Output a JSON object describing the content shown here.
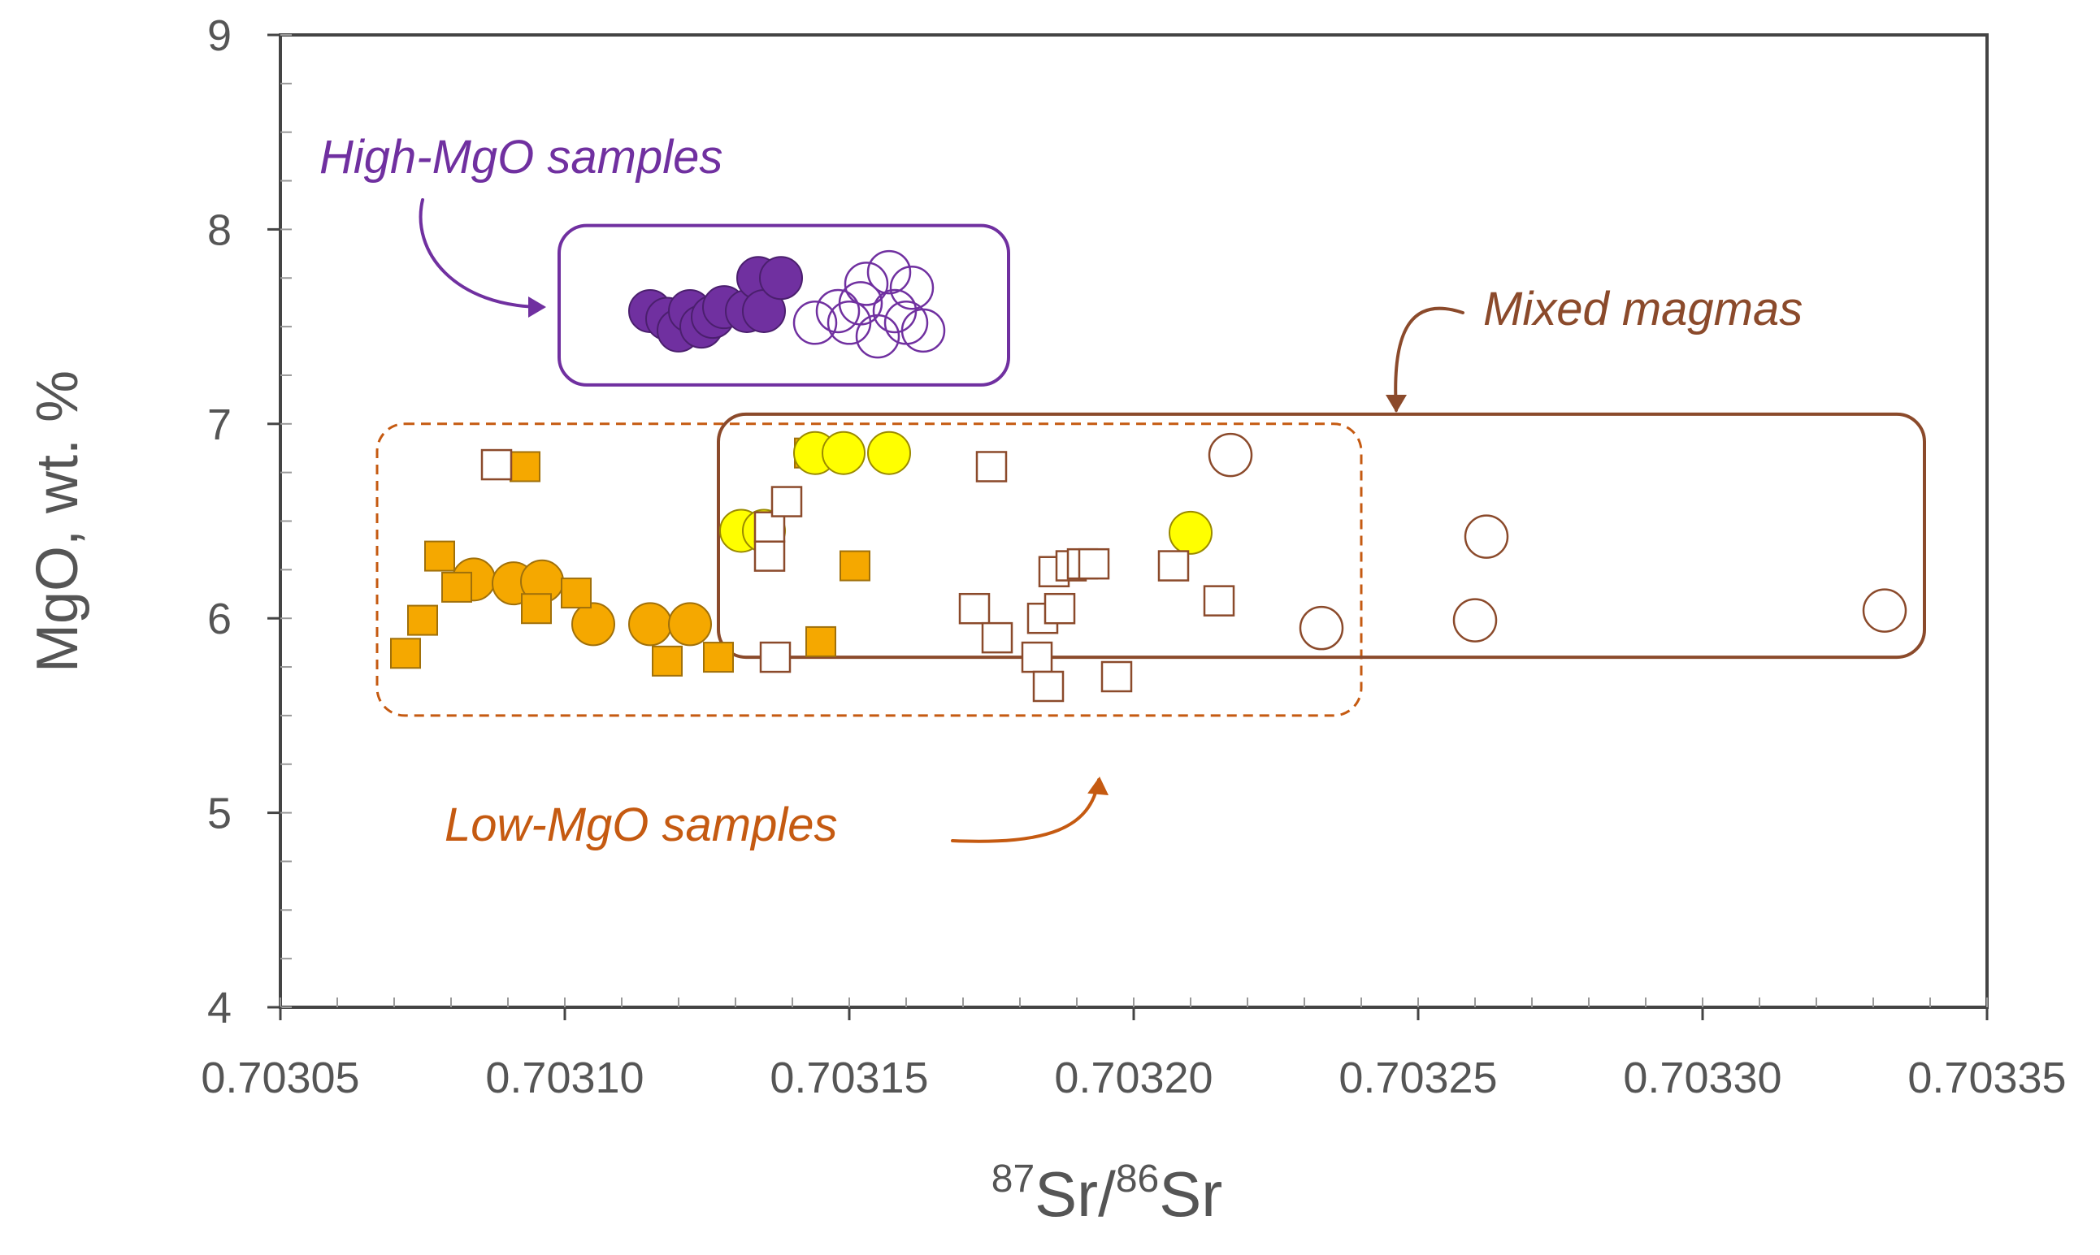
{
  "chart_data": {
    "type": "scatter",
    "title": "",
    "xlabel": {
      "base1": "Sr",
      "sup1": "87",
      "base2": "Sr",
      "sup2": "86",
      "sep": "/"
    },
    "ylabel": "MgO, wt. %",
    "xlim": [
      0.70305,
      0.70335
    ],
    "ylim": [
      4,
      9
    ],
    "x_ticks": [
      "0.70305",
      "0.70310",
      "0.70315",
      "0.70320",
      "0.70325",
      "0.70330",
      "0.70335"
    ],
    "x_tick_values": [
      0.70305,
      0.7031,
      0.70315,
      0.7032,
      0.70325,
      0.7033,
      0.70335
    ],
    "y_ticks": [
      "4",
      "5",
      "6",
      "7",
      "8",
      "9"
    ],
    "y_tick_values": [
      4,
      5,
      6,
      7,
      8,
      9
    ],
    "grid": false,
    "series": [
      {
        "name": "high-mgo-filled-circles",
        "marker": "circle",
        "filled": true,
        "fill": "#7030A0",
        "stroke": "#4B1F6E",
        "points": [
          [
            0.703115,
            7.58
          ],
          [
            0.703118,
            7.54
          ],
          [
            0.70312,
            7.48
          ],
          [
            0.703122,
            7.58
          ],
          [
            0.703124,
            7.5
          ],
          [
            0.703126,
            7.55
          ],
          [
            0.703128,
            7.6
          ],
          [
            0.703132,
            7.58
          ],
          [
            0.703134,
            7.75
          ],
          [
            0.703135,
            7.58
          ],
          [
            0.703138,
            7.75
          ]
        ]
      },
      {
        "name": "high-mgo-open-circles",
        "marker": "circle",
        "filled": false,
        "fill": "none",
        "stroke": "#7030A0",
        "points": [
          [
            0.703144,
            7.52
          ],
          [
            0.703148,
            7.58
          ],
          [
            0.70315,
            7.52
          ],
          [
            0.703152,
            7.62
          ],
          [
            0.703153,
            7.72
          ],
          [
            0.703155,
            7.45
          ],
          [
            0.703157,
            7.78
          ],
          [
            0.703158,
            7.58
          ],
          [
            0.70316,
            7.52
          ],
          [
            0.703161,
            7.7
          ],
          [
            0.703163,
            7.48
          ]
        ]
      },
      {
        "name": "low-mgo-filled-circles",
        "marker": "circle",
        "filled": true,
        "fill": "#F5A800",
        "stroke": "#A0700A",
        "points": [
          [
            0.703084,
            6.2
          ],
          [
            0.703091,
            6.18
          ],
          [
            0.703096,
            6.19
          ],
          [
            0.703105,
            5.97
          ],
          [
            0.703115,
            5.97
          ],
          [
            0.703122,
            5.97
          ]
        ]
      },
      {
        "name": "low-mgo-filled-squares",
        "marker": "square",
        "filled": true,
        "fill": "#F5A800",
        "stroke": "#A0700A",
        "points": [
          [
            0.703072,
            5.82
          ],
          [
            0.703075,
            5.99
          ],
          [
            0.703078,
            6.32
          ],
          [
            0.703081,
            6.16
          ],
          [
            0.703093,
            6.78
          ],
          [
            0.703095,
            6.05
          ],
          [
            0.703102,
            6.13
          ],
          [
            0.703118,
            5.78
          ],
          [
            0.703127,
            5.8
          ],
          [
            0.703145,
            5.88
          ],
          [
            0.703151,
            6.27
          ],
          [
            0.703143,
            6.85
          ]
        ]
      },
      {
        "name": "yellow-filled-circles",
        "marker": "circle",
        "filled": true,
        "fill": "#FFFF00",
        "stroke": "#9A8A00",
        "points": [
          [
            0.703131,
            6.45
          ],
          [
            0.703135,
            6.45
          ],
          [
            0.703144,
            6.85
          ],
          [
            0.703149,
            6.85
          ],
          [
            0.703157,
            6.85
          ],
          [
            0.70321,
            6.44
          ]
        ]
      },
      {
        "name": "open-squares",
        "marker": "square",
        "filled": false,
        "fill": "#ffffff",
        "stroke": "#8B4A2B",
        "points": [
          [
            0.703088,
            6.79
          ],
          [
            0.703136,
            6.32
          ],
          [
            0.703136,
            6.47
          ],
          [
            0.703137,
            5.8
          ],
          [
            0.703139,
            6.6
          ],
          [
            0.703172,
            6.05
          ],
          [
            0.703175,
            6.78
          ],
          [
            0.703176,
            5.9
          ],
          [
            0.703183,
            5.8
          ],
          [
            0.703184,
            6.0
          ],
          [
            0.703185,
            5.65
          ],
          [
            0.703186,
            6.24
          ],
          [
            0.703187,
            6.05
          ],
          [
            0.703189,
            6.27
          ],
          [
            0.703191,
            6.28
          ],
          [
            0.703193,
            6.28
          ],
          [
            0.703197,
            5.7
          ],
          [
            0.703207,
            6.27
          ],
          [
            0.703215,
            6.09
          ]
        ]
      },
      {
        "name": "open-circles",
        "marker": "circle",
        "filled": false,
        "fill": "#ffffff",
        "stroke": "#8B4A2B",
        "points": [
          [
            0.703217,
            6.84
          ],
          [
            0.703233,
            5.95
          ],
          [
            0.70326,
            5.99
          ],
          [
            0.703262,
            6.42
          ],
          [
            0.703332,
            6.04
          ]
        ]
      }
    ],
    "annotations": [
      {
        "id": "high-mgo",
        "text": "High-MgO samples",
        "color": "#7030A0"
      },
      {
        "id": "mixed",
        "text": "Mixed magmas",
        "color": "#8B4A2B"
      },
      {
        "id": "low-mgo",
        "text": "Low-MgO samples",
        "color": "#C55A11"
      }
    ],
    "regions": [
      {
        "id": "high-mgo-box",
        "x": [
          0.703099,
          0.703178
        ],
        "y": [
          7.2,
          8.02
        ],
        "style": "solid",
        "color": "#7030A0"
      },
      {
        "id": "low-mgo-box",
        "x": [
          0.703067,
          0.70324
        ],
        "y": [
          5.5,
          7.0
        ],
        "style": "dashed",
        "color": "#C55A11"
      },
      {
        "id": "mixed-box",
        "x": [
          0.703127,
          0.703339
        ],
        "y": [
          5.8,
          7.05
        ],
        "style": "solid",
        "color": "#8B4A2B"
      }
    ]
  }
}
